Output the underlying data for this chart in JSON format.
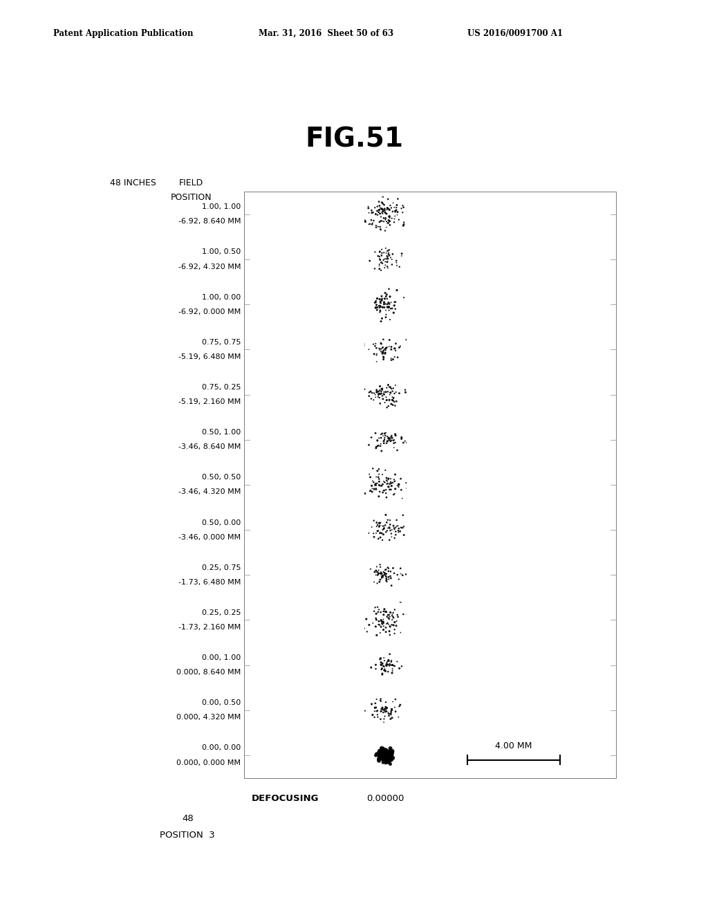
{
  "title": "FIG.51",
  "header_left": "Patent Application Publication",
  "header_mid": "Mar. 31, 2016  Sheet 50 of 63",
  "header_right": "US 2016/0091700 A1",
  "label_top_left": "48 INCHES",
  "label_field_line1": "FIELD",
  "label_field_line2": "POSITION",
  "field_labels": [
    [
      "1.00, 1.00",
      "-6.92, 8.640 MM"
    ],
    [
      "1.00, 0.50",
      "-6.92, 4.320 MM"
    ],
    [
      "1.00, 0.00",
      "-6.92, 0.000 MM"
    ],
    [
      "0.75, 0.75",
      "-5.19, 6.480 MM"
    ],
    [
      "0.75, 0.25",
      "-5.19, 2.160 MM"
    ],
    [
      "0.50, 1.00",
      "-3.46, 8.640 MM"
    ],
    [
      "0.50, 0.50",
      "-3.46, 4.320 MM"
    ],
    [
      "0.50, 0.00",
      "-3.46, 0.000 MM"
    ],
    [
      "0.25, 0.75",
      "-1.73, 6.480 MM"
    ],
    [
      "0.25, 0.25",
      "-1.73, 2.160 MM"
    ],
    [
      "0.00, 1.00",
      "0.000, 8.640 MM"
    ],
    [
      "0.00, 0.50",
      "0.000, 4.320 MM"
    ],
    [
      "0.00, 0.00",
      "0.000, 0.000 MM"
    ]
  ],
  "bottom_label_defocusing": "DEFOCUSING",
  "bottom_label_value": "0.00000",
  "bottom_label_num": "48",
  "bottom_label_pos": "POSITION  3",
  "scale_label": "4.00 MM",
  "background_color": "#ffffff",
  "text_color": "#000000"
}
